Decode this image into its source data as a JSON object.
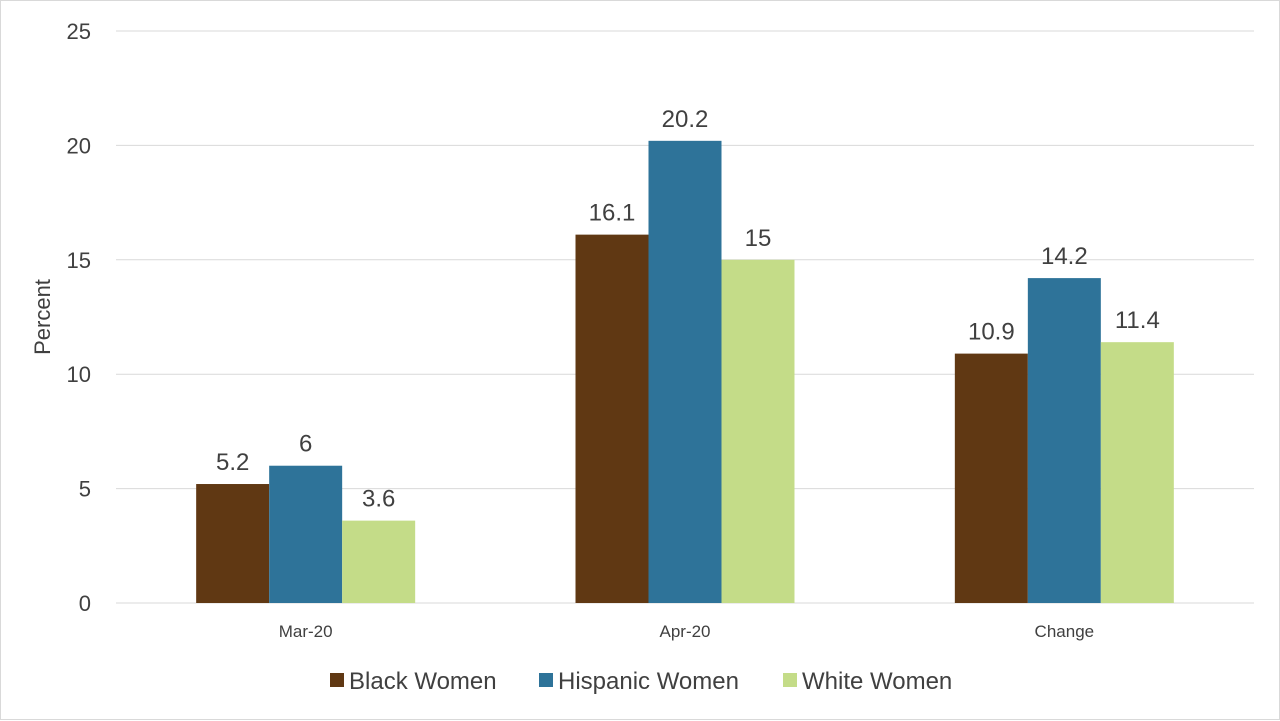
{
  "chart_data": {
    "type": "bar",
    "categories": [
      "Mar-20",
      "Apr-20",
      "Change"
    ],
    "series": [
      {
        "name": "Black Women",
        "color": "#603813",
        "values": [
          5.2,
          16.1,
          10.9
        ]
      },
      {
        "name": "Hispanic Women",
        "color": "#2e7399",
        "values": [
          6,
          20.2,
          14.2
        ]
      },
      {
        "name": "White Women",
        "color": "#c4dc88",
        "values": [
          3.6,
          15,
          11.4
        ]
      }
    ],
    "data_labels": [
      [
        "5.2",
        "16.1",
        "10.9"
      ],
      [
        "6",
        "20.2",
        "14.2"
      ],
      [
        "3.6",
        "15",
        "11.4"
      ]
    ],
    "ylabel": "Percent",
    "ylim": [
      0,
      25
    ],
    "yticks": [
      0,
      5,
      10,
      15,
      20,
      25
    ],
    "ytick_labels": [
      "0",
      "5",
      "10",
      "15",
      "20",
      "25"
    ],
    "grid": true,
    "gridline_color": "#d9d9d9",
    "legend_position": "bottom"
  }
}
